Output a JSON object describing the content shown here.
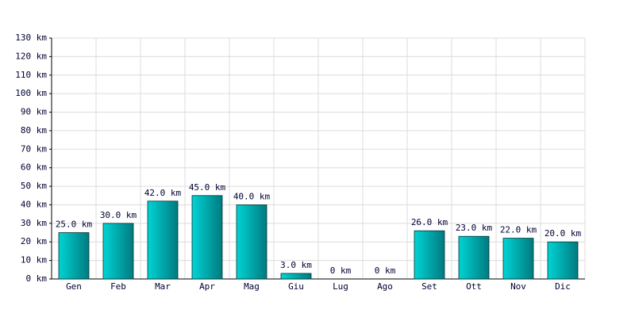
{
  "chart_data": {
    "type": "bar",
    "categories": [
      "Gen",
      "Feb",
      "Mar",
      "Apr",
      "Mag",
      "Giu",
      "Lug",
      "Ago",
      "Set",
      "Ott",
      "Nov",
      "Dic"
    ],
    "values": [
      25,
      30,
      42,
      45,
      40,
      3,
      0,
      0,
      26,
      23,
      22,
      20
    ],
    "value_labels": [
      "25.0 km",
      "30.0 km",
      "42.0 km",
      "45.0 km",
      "40.0 km",
      "3.0 km",
      "0 km",
      "0 km",
      "26.0 km",
      "23.0 km",
      "22.0 km",
      "20.0 km"
    ],
    "color": "#00d4d4",
    "ylim": [
      0,
      130
    ],
    "yticks": [
      {
        "value": 0,
        "label": "0 km"
      },
      {
        "value": 10,
        "label": "10 km"
      },
      {
        "value": 20,
        "label": "20 km"
      },
      {
        "value": 30,
        "label": "30 km"
      },
      {
        "value": 40,
        "label": "40 km"
      },
      {
        "value": 50,
        "label": "50 km"
      },
      {
        "value": 60,
        "label": "60 km"
      },
      {
        "value": 70,
        "label": "70 km"
      },
      {
        "value": 80,
        "label": "80 km"
      },
      {
        "value": 90,
        "label": "90 km"
      },
      {
        "value": 100,
        "label": "100 km"
      },
      {
        "value": 110,
        "label": "110 km"
      },
      {
        "value": 120,
        "label": "120 km"
      },
      {
        "value": 130,
        "label": "130 km"
      }
    ],
    "grid": true
  }
}
